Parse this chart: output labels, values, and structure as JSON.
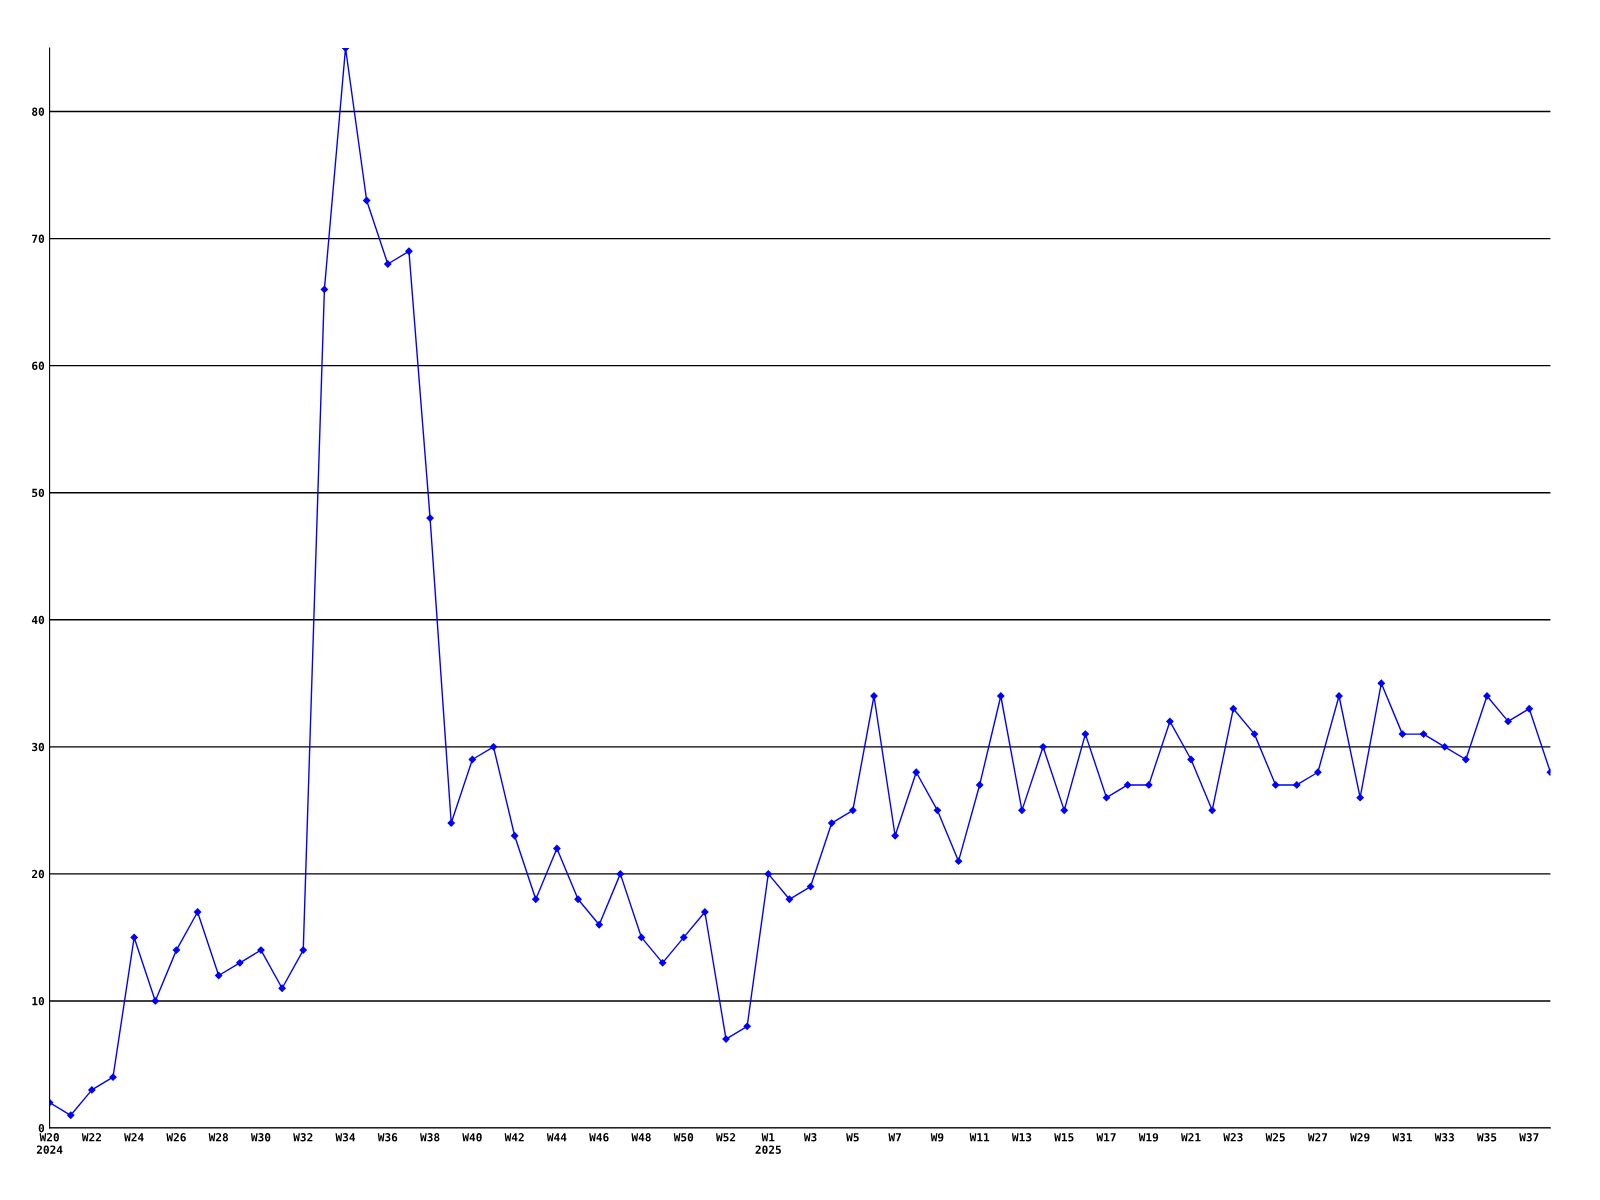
{
  "chart_data": {
    "type": "line",
    "categories": [
      "W20\n2024",
      null,
      "W22",
      null,
      "W24",
      null,
      "W26",
      null,
      "W28",
      null,
      "W30",
      null,
      "W32",
      null,
      "W34",
      null,
      "W36",
      null,
      "W38",
      null,
      "W40",
      null,
      "W42",
      null,
      "W44",
      null,
      "W46",
      null,
      "W48",
      null,
      "W50",
      null,
      "W52",
      null,
      "W1\n2025",
      null,
      "W3",
      null,
      "W5",
      null,
      "W7",
      null,
      "W9",
      null,
      "W11",
      null,
      "W13",
      null,
      "W15",
      null,
      "W17",
      null,
      "W19",
      null,
      "W21",
      null,
      "W23",
      null,
      "W25",
      null,
      "W27",
      null,
      "W29",
      null,
      "W31",
      null,
      "W33",
      null,
      "W35",
      null,
      "W37",
      null
    ],
    "series": [
      {
        "color": "#0000ff",
        "values": [
          2,
          1,
          3,
          4,
          15,
          10,
          14,
          17,
          12,
          13,
          14,
          11,
          14,
          66,
          85,
          73,
          68,
          69,
          48,
          24,
          29,
          30,
          23,
          18,
          22,
          18,
          16,
          20,
          15,
          13,
          15,
          17,
          7,
          8,
          20,
          18,
          19,
          24,
          25,
          34,
          23,
          28,
          25,
          21,
          27,
          34,
          25,
          30,
          25,
          31,
          26,
          27,
          27,
          32,
          29,
          25,
          33,
          31,
          27,
          27,
          28,
          34,
          26,
          35,
          31,
          31,
          30,
          29,
          34,
          32,
          33,
          28
        ]
      }
    ],
    "ylim": [
      0,
      85
    ],
    "yticks": [
      0,
      10,
      20,
      30,
      40,
      50,
      60,
      70,
      80
    ],
    "grid": "y",
    "marker": "diamond",
    "line_style": "solid"
  }
}
